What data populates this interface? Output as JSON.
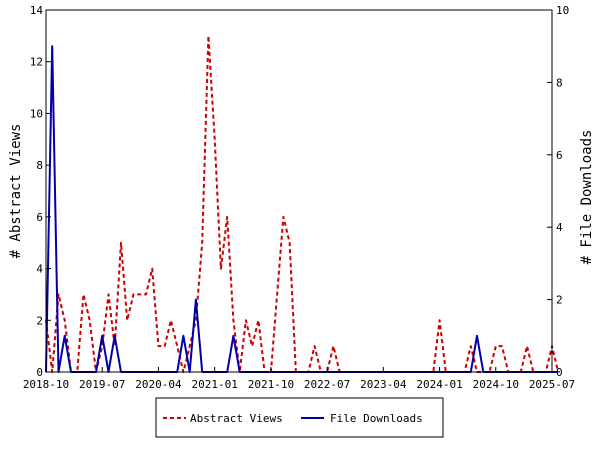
{
  "chart_data": {
    "type": "line",
    "title": "",
    "xlabel": "",
    "ylabel": "# Abstract Views",
    "y2label": "# File Downloads",
    "ylim": [
      0,
      14
    ],
    "y2lim": [
      0,
      10
    ],
    "yticks": [
      "0",
      "2",
      "4",
      "6",
      "8",
      "10",
      "12",
      "14"
    ],
    "y2ticks": [
      "0",
      "2",
      "4",
      "6",
      "8",
      "10"
    ],
    "xlim": [
      "2018-10",
      "2025-07"
    ],
    "xticks": [
      "2018-10",
      "2019-07",
      "2020-04",
      "2021-01",
      "2021-10",
      "2022-07",
      "2023-04",
      "2024-01",
      "2024-10",
      "2025-07"
    ],
    "grid": false,
    "legend_position": "bottom-center",
    "series": [
      {
        "name": "Abstract Views",
        "axis": "left",
        "color": "#cc0000",
        "dash": "dashed",
        "points": [
          [
            "2018-10",
            2
          ],
          [
            "2018-11",
            0
          ],
          [
            "2018-12",
            3
          ],
          [
            "2019-01",
            2
          ],
          [
            "2019-02",
            0
          ],
          [
            "2019-03",
            0
          ],
          [
            "2019-04",
            3
          ],
          [
            "2019-05",
            2
          ],
          [
            "2019-06",
            0
          ],
          [
            "2019-07",
            1
          ],
          [
            "2019-08",
            3
          ],
          [
            "2019-09",
            1
          ],
          [
            "2019-10",
            5
          ],
          [
            "2019-11",
            2
          ],
          [
            "2019-12",
            3
          ],
          [
            "2020-01",
            3
          ],
          [
            "2020-02",
            3
          ],
          [
            "2020-03",
            4
          ],
          [
            "2020-04",
            1
          ],
          [
            "2020-05",
            1
          ],
          [
            "2020-06",
            2
          ],
          [
            "2020-07",
            1
          ],
          [
            "2020-08",
            0
          ],
          [
            "2020-09",
            1
          ],
          [
            "2020-10",
            2
          ],
          [
            "2020-11",
            5
          ],
          [
            "2020-12",
            13
          ],
          [
            "2021-01",
            9
          ],
          [
            "2021-02",
            4
          ],
          [
            "2021-03",
            6
          ],
          [
            "2021-04",
            2
          ],
          [
            "2021-05",
            0
          ],
          [
            "2021-06",
            2
          ],
          [
            "2021-07",
            1
          ],
          [
            "2021-08",
            2
          ],
          [
            "2021-09",
            0
          ],
          [
            "2021-10",
            0
          ],
          [
            "2021-11",
            3
          ],
          [
            "2021-12",
            6
          ],
          [
            "2022-01",
            5
          ],
          [
            "2022-02",
            0
          ],
          [
            "2022-03",
            0
          ],
          [
            "2022-04",
            0
          ],
          [
            "2022-05",
            1
          ],
          [
            "2022-06",
            0
          ],
          [
            "2022-07",
            0
          ],
          [
            "2022-08",
            1
          ],
          [
            "2022-09",
            0
          ],
          [
            "2023-12",
            0
          ],
          [
            "2024-01",
            2
          ],
          [
            "2024-02",
            0
          ],
          [
            "2024-05",
            0
          ],
          [
            "2024-06",
            1
          ],
          [
            "2024-07",
            0
          ],
          [
            "2024-09",
            0
          ],
          [
            "2024-10",
            1
          ],
          [
            "2024-11",
            1
          ],
          [
            "2024-12",
            0
          ],
          [
            "2025-02",
            0
          ],
          [
            "2025-03",
            1
          ],
          [
            "2025-04",
            0
          ],
          [
            "2025-06",
            0
          ],
          [
            "2025-07",
            1
          ],
          [
            "2025-08",
            0
          ]
        ]
      },
      {
        "name": "File Downloads",
        "axis": "right",
        "color": "#0000aa",
        "dash": "solid",
        "points": [
          [
            "2018-10",
            0
          ],
          [
            "2018-11",
            9
          ],
          [
            "2018-12",
            0
          ],
          [
            "2019-01",
            1
          ],
          [
            "2019-02",
            0
          ],
          [
            "2019-03",
            0
          ],
          [
            "2019-04",
            0
          ],
          [
            "2019-05",
            0
          ],
          [
            "2019-06",
            0
          ],
          [
            "2019-07",
            1
          ],
          [
            "2019-08",
            0
          ],
          [
            "2019-09",
            1
          ],
          [
            "2019-10",
            0
          ],
          [
            "2020-07",
            0
          ],
          [
            "2020-08",
            1
          ],
          [
            "2020-09",
            0
          ],
          [
            "2020-10",
            2
          ],
          [
            "2020-11",
            0
          ],
          [
            "2021-03",
            0
          ],
          [
            "2021-04",
            1
          ],
          [
            "2021-05",
            0
          ],
          [
            "2024-06",
            0
          ],
          [
            "2024-07",
            1
          ],
          [
            "2024-08",
            0
          ],
          [
            "2025-08",
            0
          ]
        ]
      }
    ]
  }
}
